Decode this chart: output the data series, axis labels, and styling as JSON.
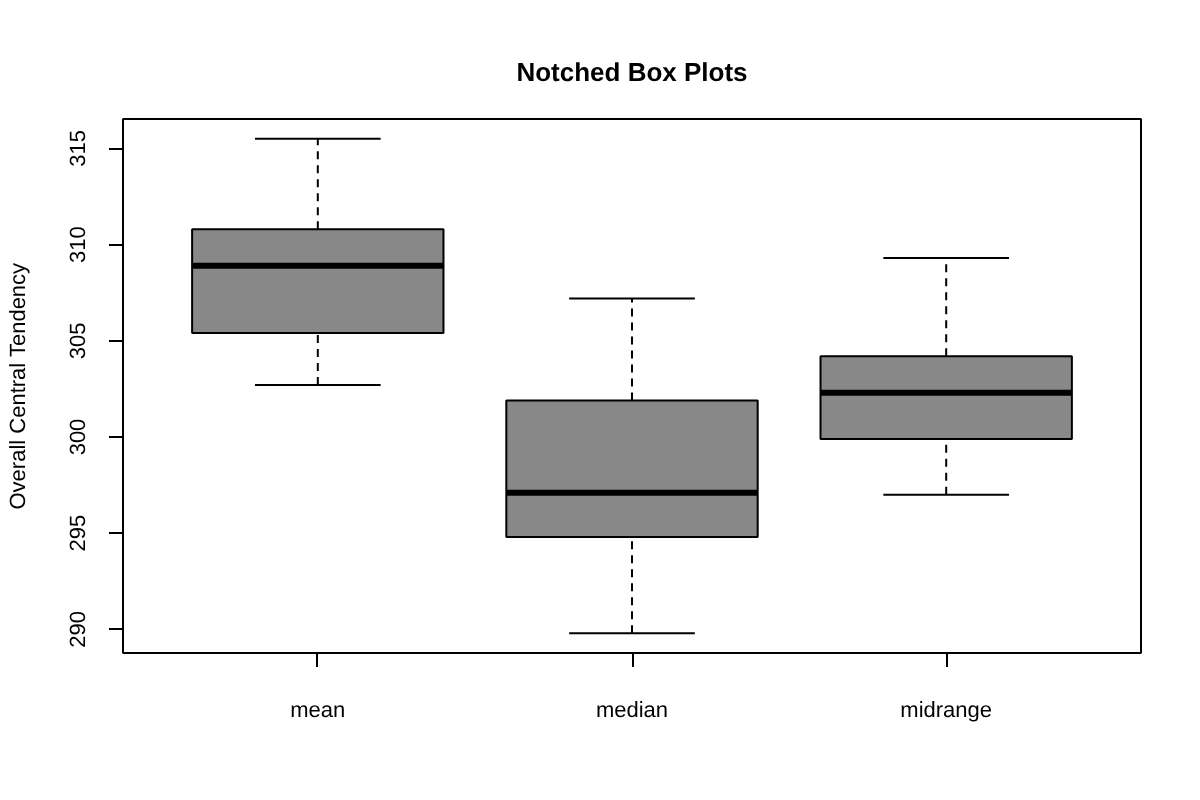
{
  "chart_data": {
    "type": "box",
    "title": "Notched Box Plots",
    "ylabel": "Overall Central Tendency",
    "categories": [
      "mean",
      "median",
      "midrange"
    ],
    "series": [
      {
        "color": "#888888",
        "boxes": [
          {
            "low": 302.7,
            "q1": 305.4,
            "median": 308.9,
            "q3": 310.8,
            "high": 315.5
          },
          {
            "low": 289.8,
            "q1": 294.8,
            "median": 297.1,
            "q3": 301.9,
            "high": 307.2
          },
          {
            "low": 297.0,
            "q1": 299.9,
            "median": 302.3,
            "q3": 304.2,
            "high": 309.3
          }
        ]
      }
    ],
    "ylim": [
      288.77,
      316.53
    ],
    "yticks": [
      290,
      295,
      300,
      305,
      310,
      315
    ],
    "grid": false
  }
}
